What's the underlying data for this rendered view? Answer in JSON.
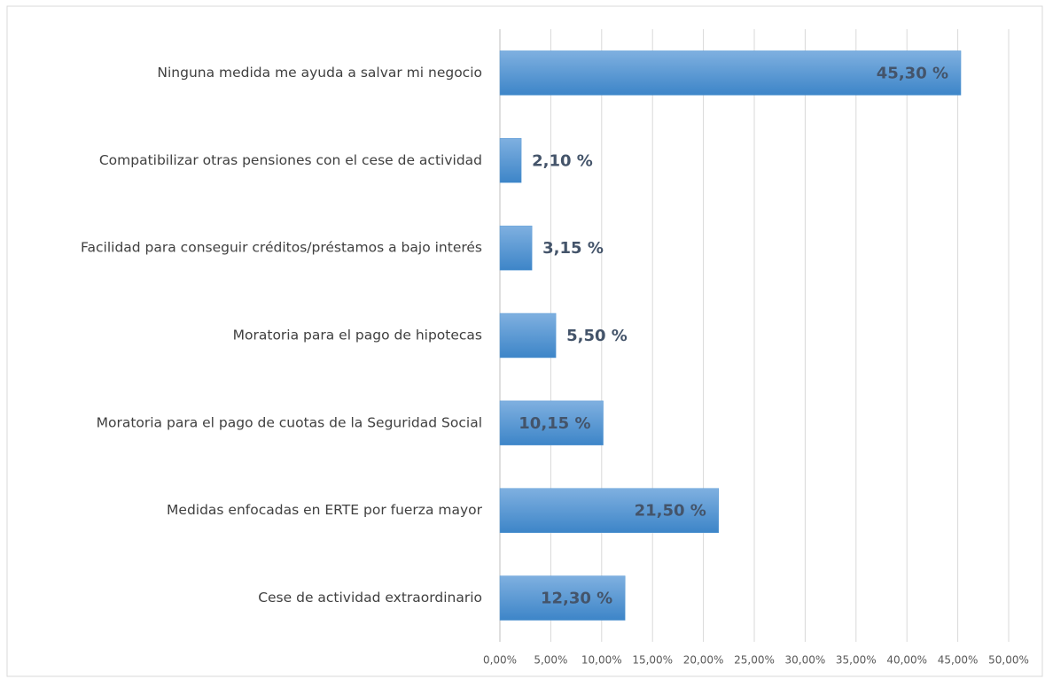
{
  "chart_data": {
    "type": "barh",
    "categories": [
      "Ninguna medida me ayuda a salvar mi negocio",
      "Compatibilizar otras pensiones con el cese de actividad",
      "Facilidad para conseguir créditos/préstamos a bajo interés",
      "Moratoria para el pago de hipotecas",
      "Moratoria para el pago de cuotas de la Seguridad Social",
      "Medidas enfocadas en ERTE por fuerza mayor",
      "Cese de actividad extraordinario"
    ],
    "values": [
      45.3,
      2.1,
      3.15,
      5.5,
      10.15,
      21.5,
      12.3
    ],
    "value_labels": [
      "45,30 %",
      "2,10 %",
      "3,15 %",
      "5,50 %",
      "10,15 %",
      "21,50 %",
      "12,30 %"
    ],
    "color": "#5b9bd5",
    "xlim": [
      0,
      50
    ],
    "xticks": [
      {
        "value": 0,
        "label": "0,00%"
      },
      {
        "value": 5,
        "label": "5,00%"
      },
      {
        "value": 10,
        "label": "10,00%"
      },
      {
        "value": 15,
        "label": "15,00%"
      },
      {
        "value": 20,
        "label": "20,00%"
      },
      {
        "value": 25,
        "label": "25,00%"
      },
      {
        "value": 30,
        "label": "30,00%"
      },
      {
        "value": 35,
        "label": "35,00%"
      },
      {
        "value": 40,
        "label": "40,00%"
      },
      {
        "value": 45,
        "label": "45,00%"
      },
      {
        "value": 50,
        "label": "50,00%"
      }
    ],
    "grid": true
  }
}
